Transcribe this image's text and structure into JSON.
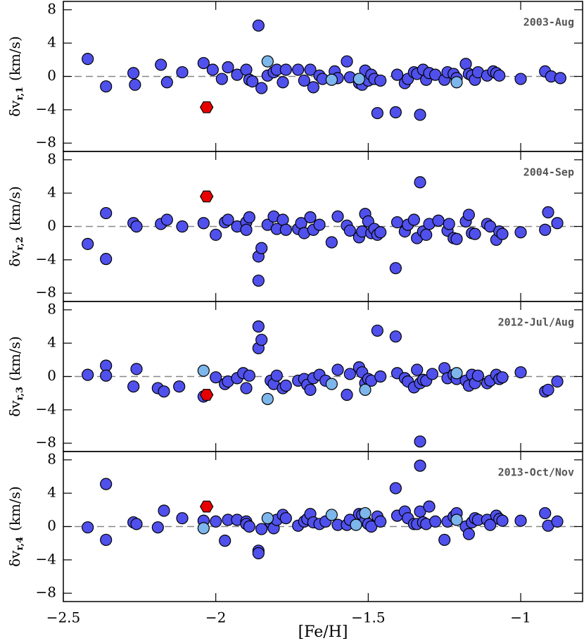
{
  "chart_data": [
    {
      "type": "scatter",
      "title": "2003-Aug",
      "ylabel_symbol": "δv",
      "ylabel_subscript": "r,1",
      "ylabel_unit": "(km/s)",
      "xlim": [
        -2.5,
        -0.797
      ],
      "xticks": [
        -2.5,
        -2,
        -1.5,
        -1
      ],
      "ylim": [
        -9,
        9
      ],
      "yticks": [
        {
          "value": -8,
          "label": "−8"
        },
        {
          "value": -4,
          "label": "−4"
        },
        0,
        4,
        8
      ],
      "hline": 0,
      "series": [
        {
          "color": "#5050ec",
          "marker": "circle",
          "x": [
            -2.42,
            -2.36,
            -2.27,
            -2.265,
            -2.18,
            -2.16,
            -2.11,
            -2.04,
            -2.01,
            -1.98,
            -1.96,
            -1.93,
            -1.9,
            -1.89,
            -1.88,
            -1.86,
            -1.85,
            -1.83,
            -1.81,
            -1.8,
            -1.78,
            -1.77,
            -1.73,
            -1.71,
            -1.69,
            -1.68,
            -1.66,
            -1.65,
            -1.61,
            -1.6,
            -1.57,
            -1.56,
            -1.53,
            -1.52,
            -1.51,
            -1.5,
            -1.49,
            -1.48,
            -1.47,
            -1.46,
            -1.41,
            -1.405,
            -1.38,
            -1.37,
            -1.35,
            -1.34,
            -1.33,
            -1.32,
            -1.31,
            -1.3,
            -1.28,
            -1.25,
            -1.24,
            -1.22,
            -1.21,
            -1.18,
            -1.17,
            -1.16,
            -1.15,
            -1.14,
            -1.11,
            -1.09,
            -1.08,
            -1.07,
            -1.0,
            -0.92,
            -0.9,
            -0.87
          ],
          "values": [
            2.1,
            -1.2,
            0.4,
            -1.0,
            1.4,
            -0.7,
            0.5,
            1.6,
            0.8,
            -0.3,
            1.1,
            0.2,
            0.8,
            -0.4,
            -0.6,
            6.1,
            -1.4,
            0.1,
            0.5,
            0.8,
            -0.7,
            0.8,
            0.8,
            -0.5,
            0.8,
            -1.3,
            0.1,
            -0.3,
            0.6,
            -0.2,
            1.8,
            -0.1,
            -0.8,
            -1.0,
            0.7,
            -0.5,
            0.2,
            -0.3,
            -4.4,
            -0.5,
            -4.3,
            0.2,
            -0.8,
            -0.3,
            0.5,
            0.3,
            -4.6,
            0.8,
            -0.4,
            0.4,
            0.2,
            -0.4,
            0.5,
            0.3,
            -0.2,
            1.5,
            0.3,
            0.1,
            -0.4,
            0.5,
            0.1,
            0.6,
            0.4,
            0.1,
            -0.3,
            0.6,
            0.0,
            -0.2
          ]
        },
        {
          "color": "#7cb6ea",
          "marker": "circle",
          "x": [
            -1.83,
            -1.62,
            -1.53,
            -1.21
          ],
          "values": [
            1.8,
            -0.4,
            -0.3,
            -0.7
          ]
        },
        {
          "color": "#e80000",
          "marker": "hexagon",
          "x": [
            -2.03
          ],
          "values": [
            -3.7
          ]
        }
      ]
    },
    {
      "type": "scatter",
      "title": "2004-Sep",
      "ylabel_symbol": "δv",
      "ylabel_subscript": "r,2",
      "ylabel_unit": "(km/s)",
      "xlim": [
        -2.5,
        -0.797
      ],
      "xticks": [
        -2.5,
        -2,
        -1.5,
        -1
      ],
      "ylim": [
        -9,
        9
      ],
      "yticks": [
        {
          "value": -8,
          "label": "−8"
        },
        {
          "value": -4,
          "label": "−4"
        },
        0,
        4,
        8
      ],
      "hline": 0,
      "series": [
        {
          "color": "#5050ec",
          "marker": "circle",
          "x": [
            -2.42,
            -2.36,
            -2.36,
            -2.27,
            -2.26,
            -2.18,
            -2.16,
            -2.11,
            -2.04,
            -2.0,
            -1.97,
            -1.96,
            -1.93,
            -1.9,
            -1.9,
            -1.89,
            -1.86,
            -1.86,
            -1.85,
            -1.83,
            -1.81,
            -1.8,
            -1.78,
            -1.77,
            -1.73,
            -1.72,
            -1.71,
            -1.69,
            -1.68,
            -1.66,
            -1.62,
            -1.6,
            -1.57,
            -1.56,
            -1.53,
            -1.52,
            -1.51,
            -1.5,
            -1.49,
            -1.48,
            -1.47,
            -1.46,
            -1.41,
            -1.405,
            -1.38,
            -1.37,
            -1.35,
            -1.34,
            -1.33,
            -1.32,
            -1.31,
            -1.3,
            -1.27,
            -1.24,
            -1.235,
            -1.22,
            -1.21,
            -1.18,
            -1.17,
            -1.16,
            -1.15,
            -1.11,
            -1.1,
            -1.08,
            -1.07,
            -1.06,
            -1.0,
            -0.92,
            -0.91,
            -0.88
          ],
          "values": [
            -2.1,
            1.6,
            -3.9,
            0.4,
            0.0,
            0.3,
            0.8,
            0.0,
            0.4,
            -1.0,
            0.5,
            0.8,
            0.0,
            0.5,
            -0.4,
            1.1,
            -3.6,
            -6.5,
            -2.6,
            0.2,
            1.2,
            -0.3,
            0.8,
            -0.4,
            -0.3,
            0.4,
            -0.8,
            1.1,
            -0.4,
            0.2,
            -1.9,
            1.2,
            0.1,
            -0.5,
            -1.3,
            -0.6,
            1.5,
            0.6,
            -0.8,
            -0.3,
            -1.0,
            -0.7,
            -5.0,
            0.5,
            -0.6,
            0.2,
            0.8,
            -1.4,
            5.3,
            -0.6,
            -1.0,
            0.3,
            0.7,
            -0.5,
            0.3,
            -1.4,
            -1.5,
            0.6,
            1.4,
            -0.8,
            -0.9,
            0.3,
            0.0,
            -1.6,
            -0.6,
            -0.9,
            -0.7,
            -0.4,
            1.7,
            0.4
          ]
        },
        {
          "color": "#e80000",
          "marker": "hexagon",
          "x": [
            -2.03
          ],
          "values": [
            3.6
          ]
        }
      ]
    },
    {
      "type": "scatter",
      "title": "2012-Jul/Aug",
      "ylabel_symbol": "δv",
      "ylabel_subscript": "r,3",
      "ylabel_unit": "(km/s)",
      "xlim": [
        -2.5,
        -0.797
      ],
      "xticks": [
        -2.5,
        -2,
        -1.5,
        -1
      ],
      "ylim": [
        -9,
        9
      ],
      "yticks": [
        {
          "value": -8,
          "label": "−8"
        },
        {
          "value": -4,
          "label": "−4"
        },
        0,
        4,
        8
      ],
      "hline": 0,
      "series": [
        {
          "color": "#5050ec",
          "marker": "circle",
          "x": [
            -2.42,
            -2.36,
            -2.36,
            -2.27,
            -2.26,
            -2.19,
            -2.17,
            -2.12,
            -2.04,
            -2.0,
            -1.97,
            -1.96,
            -1.93,
            -1.91,
            -1.9,
            -1.89,
            -1.86,
            -1.86,
            -1.85,
            -1.82,
            -1.81,
            -1.8,
            -1.78,
            -1.77,
            -1.73,
            -1.71,
            -1.7,
            -1.69,
            -1.68,
            -1.66,
            -1.64,
            -1.6,
            -1.57,
            -1.56,
            -1.53,
            -1.52,
            -1.51,
            -1.5,
            -1.49,
            -1.47,
            -1.46,
            -1.41,
            -1.405,
            -1.38,
            -1.37,
            -1.35,
            -1.34,
            -1.33,
            -1.33,
            -1.32,
            -1.31,
            -1.29,
            -1.25,
            -1.24,
            -1.22,
            -1.21,
            -1.18,
            -1.17,
            -1.16,
            -1.15,
            -1.14,
            -1.11,
            -1.1,
            -1.08,
            -1.07,
            -1.06,
            -1.0,
            -0.92,
            -0.91,
            -0.88
          ],
          "values": [
            0.2,
            1.3,
            0.1,
            -1.2,
            0.9,
            -1.4,
            -1.8,
            -1.2,
            -2.4,
            -0.1,
            -0.9,
            -0.6,
            -0.2,
            0.4,
            -1.4,
            0.1,
            6.0,
            3.4,
            4.4,
            -0.5,
            -0.9,
            0.1,
            -1.4,
            -1.1,
            -0.5,
            -0.3,
            -1.0,
            -1.6,
            -0.2,
            0.2,
            -0.5,
            0.8,
            -2.2,
            0.3,
            1.1,
            0.5,
            -0.8,
            -0.3,
            -0.5,
            5.5,
            0.0,
            4.8,
            0.4,
            -0.2,
            -0.6,
            -1.3,
            0.8,
            -7.8,
            -0.8,
            -0.4,
            -0.5,
            0.3,
            1.0,
            -0.2,
            0.2,
            -0.3,
            -0.5,
            -1.1,
            0.2,
            -0.8,
            0.1,
            -0.8,
            -0.5,
            0.2,
            -0.3,
            -0.1,
            0.5,
            -1.8,
            -1.6,
            -0.6
          ]
        },
        {
          "color": "#7cb6ea",
          "marker": "circle",
          "x": [
            -2.04,
            -1.83,
            -1.62,
            -1.51,
            -1.21
          ],
          "values": [
            0.7,
            -2.7,
            -0.9,
            -1.6,
            0.4
          ]
        },
        {
          "color": "#e80000",
          "marker": "hexagon",
          "x": [
            -2.03
          ],
          "values": [
            -2.2
          ]
        }
      ]
    },
    {
      "type": "scatter",
      "title": "2013-Oct/Nov",
      "ylabel_symbol": "δv",
      "ylabel_subscript": "r,4",
      "ylabel_unit": "(km/s)",
      "xlabel": "[Fe/H]",
      "xlim": [
        -2.5,
        -0.797
      ],
      "xticks": [
        {
          "value": -2.5,
          "label": "−2.5"
        },
        {
          "value": -2,
          "label": "−2"
        },
        {
          "value": -1.5,
          "label": "−1.5"
        },
        {
          "value": -1,
          "label": "−1"
        }
      ],
      "ylim": [
        -9,
        9
      ],
      "yticks": [
        {
          "value": -8,
          "label": "−8"
        },
        {
          "value": -4,
          "label": "−4"
        },
        0,
        4,
        8
      ],
      "hline": 0,
      "series": [
        {
          "color": "#5050ec",
          "marker": "circle",
          "x": [
            -2.42,
            -2.36,
            -2.36,
            -2.27,
            -2.26,
            -2.19,
            -2.17,
            -2.11,
            -2.04,
            -2.0,
            -1.97,
            -1.96,
            -1.93,
            -1.9,
            -1.9,
            -1.89,
            -1.86,
            -1.86,
            -1.85,
            -1.82,
            -1.81,
            -1.8,
            -1.78,
            -1.77,
            -1.73,
            -1.71,
            -1.7,
            -1.69,
            -1.68,
            -1.66,
            -1.64,
            -1.6,
            -1.57,
            -1.56,
            -1.53,
            -1.52,
            -1.51,
            -1.5,
            -1.49,
            -1.47,
            -1.46,
            -1.41,
            -1.405,
            -1.38,
            -1.37,
            -1.35,
            -1.34,
            -1.33,
            -1.33,
            -1.32,
            -1.31,
            -1.3,
            -1.28,
            -1.25,
            -1.24,
            -1.22,
            -1.21,
            -1.18,
            -1.17,
            -1.16,
            -1.15,
            -1.14,
            -1.11,
            -1.1,
            -1.08,
            -1.07,
            -1.06,
            -1.0,
            -0.92,
            -0.91,
            -0.88
          ],
          "values": [
            -0.1,
            5.1,
            -1.6,
            0.5,
            0.3,
            -0.1,
            1.9,
            1.0,
            0.7,
            0.6,
            -1.7,
            0.8,
            0.8,
            0.6,
            0.3,
            0.0,
            -2.9,
            -3.2,
            -0.3,
            0.5,
            -0.2,
            0.8,
            1.4,
            1.0,
            0.1,
            0.6,
            0.9,
            1.5,
            0.5,
            0.3,
            0.6,
            0.2,
            0.2,
            0.8,
            1.5,
            1.4,
            0.7,
            0.3,
            0.0,
            1.2,
            0.6,
            4.6,
            1.3,
            1.8,
            1.0,
            0.3,
            0.3,
            7.3,
            1.8,
            0.5,
            0.3,
            2.4,
            0.6,
            -1.6,
            0.6,
            1.2,
            1.6,
            0.0,
            -0.9,
            0.5,
            1.0,
            0.8,
            0.8,
            0.2,
            1.3,
            0.9,
            0.7,
            0.7,
            1.6,
            0.1,
            0.6
          ]
        },
        {
          "color": "#7cb6ea",
          "marker": "circle",
          "x": [
            -2.04,
            -1.83,
            -1.62,
            -1.54,
            -1.51,
            -1.21
          ],
          "values": [
            -0.2,
            1.0,
            1.4,
            0.2,
            1.6,
            0.8
          ]
        },
        {
          "color": "#e80000",
          "marker": "hexagon",
          "x": [
            -2.03
          ],
          "values": [
            2.4
          ]
        }
      ]
    }
  ]
}
